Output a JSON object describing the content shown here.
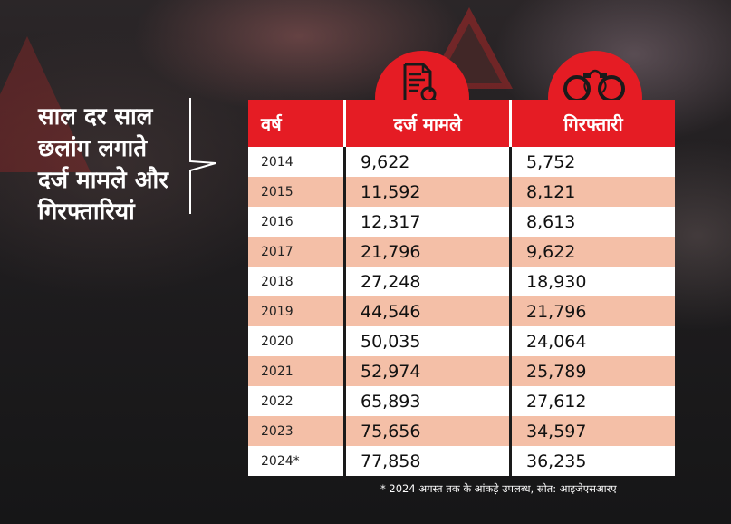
{
  "headline": {
    "line1": "साल दर साल",
    "line2": "छलांग लगाते",
    "line3": "दर्ज मामले और",
    "line4": "गिरफ्तारियां"
  },
  "icons": {
    "cases": "document-magnifier-icon",
    "arrests": "handcuffs-icon"
  },
  "colors": {
    "accent": "#e51c24",
    "alt_row": "#f4bfa7"
  },
  "chart_data": {
    "type": "table",
    "columns": [
      "वर्ष",
      "दर्ज मामले",
      "गिरफ्तारी"
    ],
    "rows": [
      {
        "year": "2014",
        "cases": "9,622",
        "arrests": "5,752"
      },
      {
        "year": "2015",
        "cases": "11,592",
        "arrests": "8,121"
      },
      {
        "year": "2016",
        "cases": "12,317",
        "arrests": "8,613"
      },
      {
        "year": "2017",
        "cases": "21,796",
        "arrests": "9,622"
      },
      {
        "year": "2018",
        "cases": "27,248",
        "arrests": "18,930"
      },
      {
        "year": "2019",
        "cases": "44,546",
        "arrests": "21,796"
      },
      {
        "year": "2020",
        "cases": "50,035",
        "arrests": "24,064"
      },
      {
        "year": "2021",
        "cases": "52,974",
        "arrests": "25,789"
      },
      {
        "year": "2022",
        "cases": "65,893",
        "arrests": "27,612"
      },
      {
        "year": "2023",
        "cases": "75,656",
        "arrests": "34,597"
      },
      {
        "year": "2024*",
        "cases": "77,858",
        "arrests": "36,235"
      }
    ]
  },
  "footnote": "* 2024 अगस्त तक के आंकड़े उपलब्ध, स्रोत: आइजेएसआरए"
}
